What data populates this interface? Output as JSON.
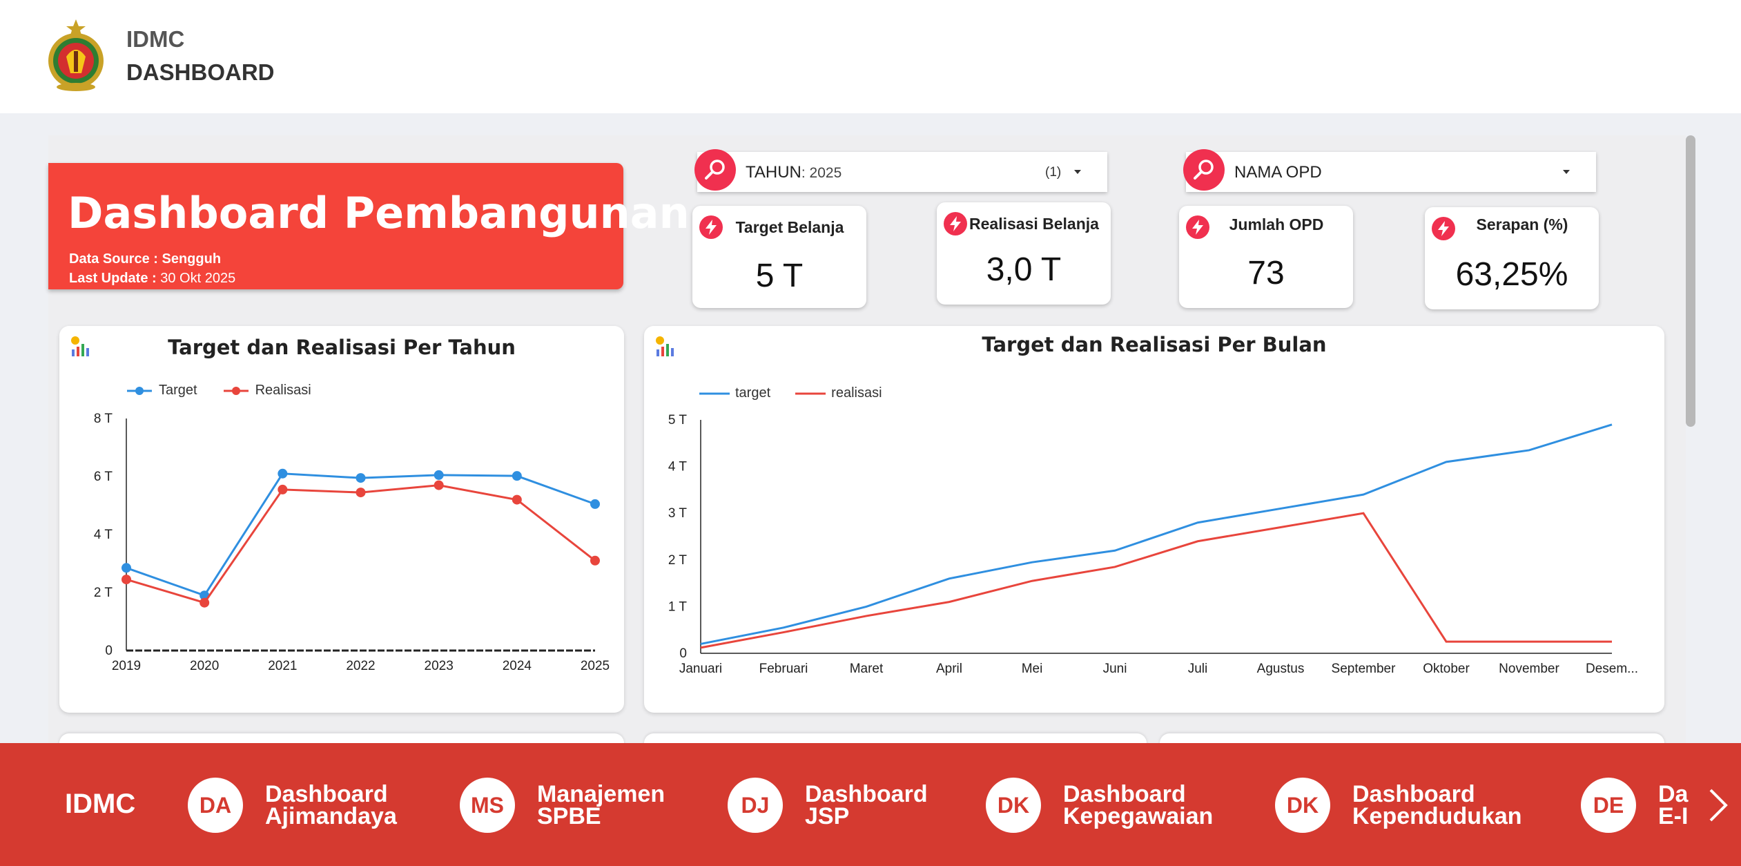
{
  "header": {
    "brand_line1": "IDMC",
    "brand_line2": "DASHBOARD"
  },
  "banner": {
    "title": "Dashboard Pembangunan",
    "source_label": "Data Source :",
    "source_value": "Sengguh",
    "update_label": "Last Update :",
    "update_value": "30 Okt 2025"
  },
  "filters": {
    "tahun": {
      "label": "TAHUN",
      "value": ": 2025",
      "count": "(1)"
    },
    "opd": {
      "label": "NAMA OPD"
    }
  },
  "kpis": [
    {
      "title": "Target Belanja",
      "value": "5 T"
    },
    {
      "title": "Realisasi Belanja",
      "value": "3,0 T"
    },
    {
      "title": "Jumlah OPD",
      "value": "73"
    },
    {
      "title": "Serapan (%)",
      "value": "63,25%"
    }
  ],
  "colors": {
    "accent_red": "#f4443a",
    "footer_red": "#d53a30",
    "filter_pink": "#f0304f",
    "series_blue": "#2f8fe0",
    "series_red": "#e8453c"
  },
  "chart_data": [
    {
      "type": "line",
      "title": "Target dan Realisasi Per Tahun",
      "x": [
        "2019",
        "2020",
        "2021",
        "2022",
        "2023",
        "2024",
        "2025"
      ],
      "y_ticks": [
        "0",
        "2 T",
        "4 T",
        "6 T",
        "8 T"
      ],
      "ylim": [
        0,
        8
      ],
      "legend_position": "top-left",
      "markers": true,
      "series": [
        {
          "name": "Target",
          "color": "#2f8fe0",
          "values": [
            2.85,
            1.9,
            6.1,
            5.95,
            6.05,
            6.02,
            5.05
          ]
        },
        {
          "name": "Realisasi",
          "color": "#e8453c",
          "values": [
            2.45,
            1.65,
            5.55,
            5.45,
            5.7,
            5.2,
            3.1
          ]
        }
      ]
    },
    {
      "type": "line",
      "title": "Target dan Realisasi Per Bulan",
      "x": [
        "Januari",
        "Februari",
        "Maret",
        "April",
        "Mei",
        "Juni",
        "Juli",
        "Agustus",
        "September",
        "Oktober",
        "November",
        "Desem..."
      ],
      "y_ticks": [
        "0",
        "1 T",
        "2 T",
        "3 T",
        "4 T",
        "5 T"
      ],
      "ylim": [
        0,
        5
      ],
      "legend_position": "top-left",
      "markers": false,
      "series": [
        {
          "name": "target",
          "color": "#2f8fe0",
          "values": [
            0.2,
            0.55,
            1.0,
            1.6,
            1.95,
            2.2,
            2.8,
            3.1,
            3.4,
            4.1,
            4.35,
            4.9
          ]
        },
        {
          "name": "realisasi",
          "color": "#e8453c",
          "values": [
            0.12,
            0.45,
            0.8,
            1.1,
            1.55,
            1.85,
            2.4,
            2.7,
            3.0,
            0.25,
            0.25,
            0.25
          ]
        }
      ]
    }
  ],
  "footer": {
    "title": "IDMC",
    "items": [
      {
        "badge": "DA",
        "line1": "Dashboard",
        "line2": "Ajimandaya"
      },
      {
        "badge": "MS",
        "line1": "Manajemen",
        "line2": "SPBE"
      },
      {
        "badge": "DJ",
        "line1": "Dashboard",
        "line2": "JSP"
      },
      {
        "badge": "DK",
        "line1": "Dashboard",
        "line2": "Kepegawaian"
      },
      {
        "badge": "DK",
        "line1": "Dashboard",
        "line2": "Kependudukan"
      },
      {
        "badge": "DE",
        "line1": "Da",
        "line2": "E-I"
      }
    ]
  }
}
